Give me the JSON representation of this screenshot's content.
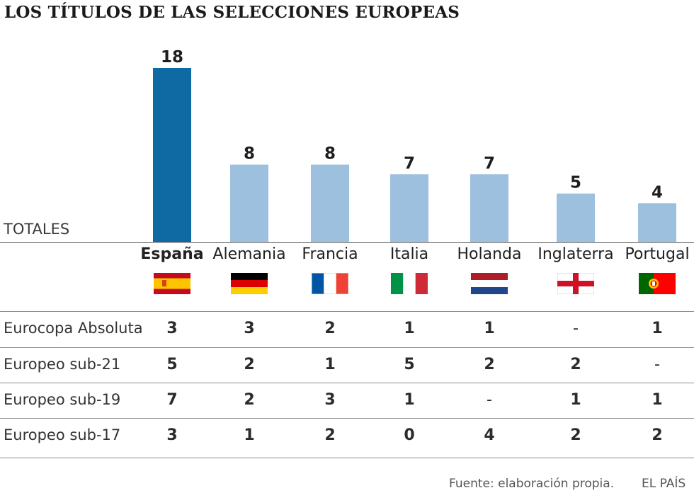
{
  "chart_data": {
    "type": "bar",
    "title": "LOS TÍTULOS DE LAS SELECCIONES EUROPEAS",
    "axis_label": "TOTALES",
    "ylim": [
      0,
      18
    ],
    "categories": [
      "España",
      "Alemania",
      "Francia",
      "Italia",
      "Holanda",
      "Inglaterra",
      "Portugal"
    ],
    "values": [
      18,
      8,
      8,
      7,
      7,
      5,
      4
    ],
    "highlight": "España",
    "colors": {
      "highlight": "#0f6aa3",
      "default": "#9cc0de"
    },
    "table": {
      "rows": [
        {
          "label": "Eurocopa Absoluta",
          "values": [
            "3",
            "3",
            "2",
            "1",
            "1",
            "-",
            "1"
          ]
        },
        {
          "label": "Europeo sub-21",
          "values": [
            "5",
            "2",
            "1",
            "5",
            "2",
            "2",
            "-"
          ]
        },
        {
          "label": "Europeo sub-19",
          "values": [
            "7",
            "2",
            "3",
            "1",
            "-",
            "1",
            "1"
          ]
        },
        {
          "label": "Europeo sub-17",
          "values": [
            "3",
            "1",
            "2",
            "0",
            "4",
            "2",
            "2"
          ]
        }
      ]
    }
  },
  "flags": [
    "spain-flag-icon",
    "germany-flag-icon",
    "france-flag-icon",
    "italy-flag-icon",
    "netherlands-flag-icon",
    "england-flag-icon",
    "portugal-flag-icon"
  ],
  "footer": {
    "source": "Fuente: elaboración propia.",
    "brand": "EL PAÍS"
  }
}
